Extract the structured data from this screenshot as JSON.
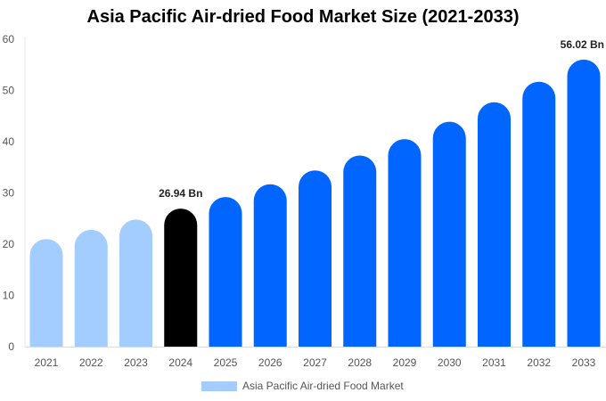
{
  "chart_data": {
    "type": "bar",
    "title": "Asia Pacific Air-dried Food Market Size (2021-2033)",
    "xlabel": "",
    "ylabel": "",
    "ylim": [
      0,
      60
    ],
    "yticks": [
      0,
      10,
      20,
      30,
      40,
      50,
      60
    ],
    "grid": false,
    "legend_placement": "bottom",
    "categories": [
      "2021",
      "2022",
      "2023",
      "2024",
      "2025",
      "2026",
      "2027",
      "2028",
      "2029",
      "2030",
      "2031",
      "2032",
      "2033"
    ],
    "series": [
      {
        "name": "Asia Pacific Air-dried Food Market",
        "values": [
          21.0,
          22.8,
          24.8,
          26.94,
          29.2,
          31.7,
          34.4,
          37.3,
          40.5,
          43.9,
          47.7,
          51.7,
          56.02
        ]
      }
    ],
    "bar_colors": [
      "#a3cdfe",
      "#a3cdfe",
      "#a3cdfe",
      "#000000",
      "#0066ff",
      "#0066ff",
      "#0066ff",
      "#0066ff",
      "#0066ff",
      "#0066ff",
      "#0066ff",
      "#0066ff",
      "#0066ff"
    ],
    "legend_color": "#a3cdfe",
    "annotations": [
      {
        "category": "2024",
        "text": "26.94 Bn"
      },
      {
        "category": "2033",
        "text": "56.02 Bn"
      }
    ]
  }
}
